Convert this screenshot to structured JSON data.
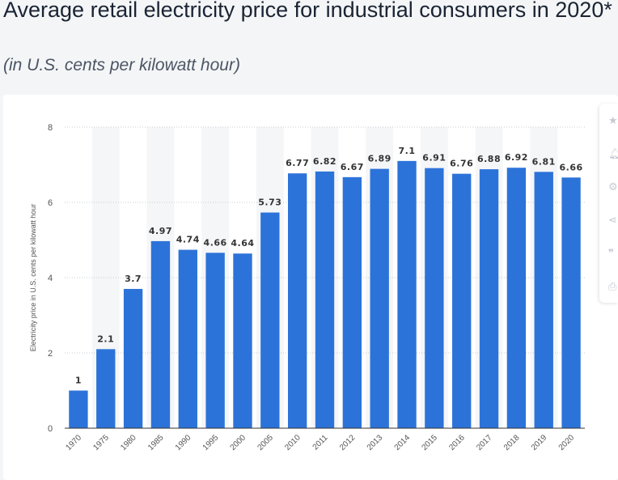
{
  "header": {
    "title": "Average retail electricity price for industrial consumers in 2020*",
    "subtitle": "(in U.S. cents per kilowatt hour)"
  },
  "toolbar": {
    "icons": [
      "star-icon",
      "bell-icon",
      "gear-icon",
      "share-icon",
      "quote-icon",
      "print-icon"
    ]
  },
  "colors": {
    "bar": "#2c73d9",
    "band": "#f5f6f8",
    "grid": "#c9ccd2",
    "text": "#333333"
  },
  "chart_data": {
    "type": "bar",
    "categories": [
      "1970",
      "1975",
      "1980",
      "1985",
      "1990",
      "1995",
      "2000",
      "2005",
      "2010",
      "2011",
      "2012",
      "2013",
      "2014",
      "2015",
      "2016",
      "2017",
      "2018",
      "2019",
      "2020"
    ],
    "values": [
      1,
      2.1,
      3.7,
      4.97,
      4.74,
      4.66,
      4.64,
      5.73,
      6.77,
      6.82,
      6.67,
      6.89,
      7.1,
      6.91,
      6.76,
      6.88,
      6.92,
      6.81,
      6.66
    ],
    "data_labels": [
      "1",
      "2.1",
      "3.7",
      "4.97",
      "4.74",
      "4.66",
      "4.64",
      "5.73",
      "6.77",
      "6.82",
      "6.67",
      "6.89",
      "7.1",
      "6.91",
      "6.76",
      "6.88",
      "6.92",
      "6.81",
      "6.66"
    ],
    "title": "Average retail electricity price for industrial consumers in 2020*",
    "subtitle": "(in U.S. cents per kilowatt hour)",
    "xlabel": "",
    "ylabel": "Electricity price in U.S. cents per kilowatt hour",
    "ylim": [
      0,
      8
    ],
    "yticks": [
      "0",
      "2",
      "4",
      "6",
      "8"
    ],
    "grid": true,
    "legend": "none"
  }
}
